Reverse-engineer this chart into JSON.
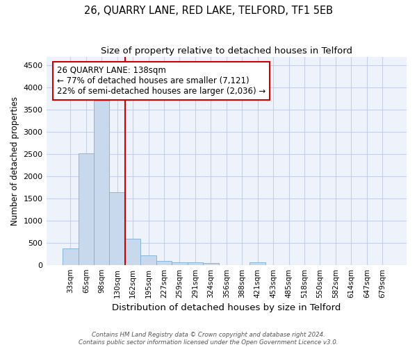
{
  "title": "26, QUARRY LANE, RED LAKE, TELFORD, TF1 5EB",
  "subtitle": "Size of property relative to detached houses in Telford",
  "xlabel": "Distribution of detached houses by size in Telford",
  "ylabel": "Number of detached properties",
  "categories": [
    "33sqm",
    "65sqm",
    "98sqm",
    "130sqm",
    "162sqm",
    "195sqm",
    "227sqm",
    "259sqm",
    "291sqm",
    "324sqm",
    "356sqm",
    "388sqm",
    "421sqm",
    "453sqm",
    "485sqm",
    "518sqm",
    "550sqm",
    "582sqm",
    "614sqm",
    "647sqm",
    "679sqm"
  ],
  "values": [
    370,
    2510,
    3700,
    1640,
    590,
    220,
    95,
    60,
    55,
    40,
    0,
    0,
    55,
    0,
    0,
    0,
    0,
    0,
    0,
    0,
    0
  ],
  "bar_color": "#c8d9ee",
  "bar_edge_color": "#7aafd4",
  "annotation_title": "26 QUARRY LANE: 138sqm",
  "annotation_line1": "← 77% of detached houses are smaller (7,121)",
  "annotation_line2": "22% of semi-detached houses are larger (2,036) →",
  "red_line_color": "#cc0000",
  "footer_line1": "Contains HM Land Registry data © Crown copyright and database right 2024.",
  "footer_line2": "Contains public sector information licensed under the Open Government Licence v3.0.",
  "bg_color": "#eef2fb",
  "grid_color": "#c5d0e8",
  "title_fontsize": 10.5,
  "subtitle_fontsize": 9.5,
  "ylabel_fontsize": 8.5,
  "xlabel_fontsize": 9.5,
  "ylim": [
    0,
    4700
  ],
  "yticks": [
    0,
    500,
    1000,
    1500,
    2000,
    2500,
    3000,
    3500,
    4000,
    4500
  ]
}
